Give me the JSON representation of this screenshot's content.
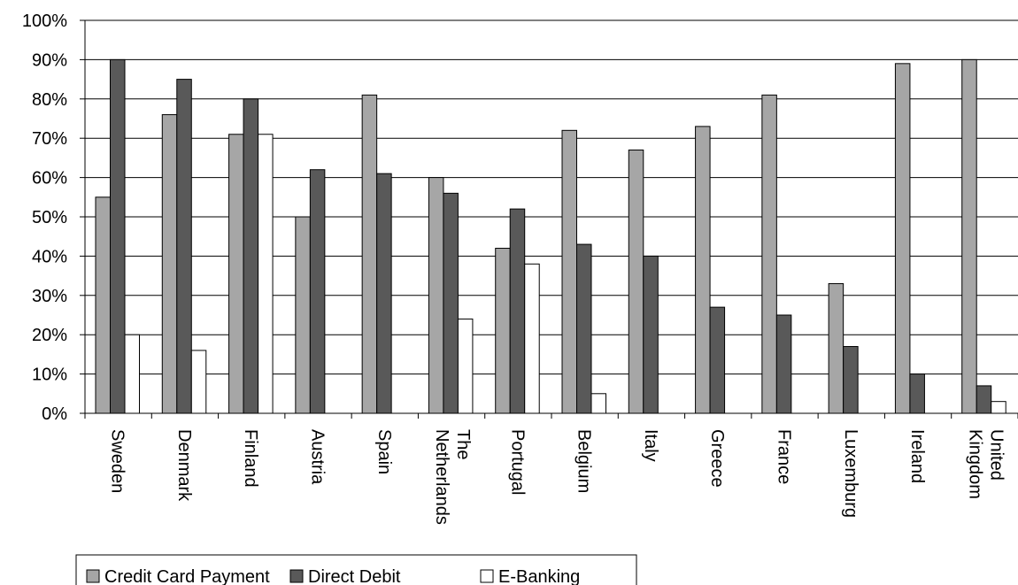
{
  "chart_data": {
    "type": "bar",
    "categories": [
      [
        "Sweden"
      ],
      [
        "Denmark"
      ],
      [
        "Finland"
      ],
      [
        "Austria"
      ],
      [
        "Spain"
      ],
      [
        "The",
        "Netherlands"
      ],
      [
        "Portugal"
      ],
      [
        "Belgium"
      ],
      [
        "Italy"
      ],
      [
        "Greece"
      ],
      [
        "France"
      ],
      [
        "Luxemburg"
      ],
      [
        "Ireland"
      ],
      [
        "United",
        "Kingdom"
      ]
    ],
    "series": [
      {
        "name": "Credit Card Payment",
        "color": "#a6a6a6",
        "values": [
          55,
          76,
          71,
          50,
          81,
          60,
          42,
          72,
          67,
          73,
          81,
          33,
          89,
          90
        ]
      },
      {
        "name": "Direct Debit",
        "color": "#595959",
        "values": [
          90,
          85,
          80,
          62,
          61,
          56,
          52,
          43,
          40,
          27,
          25,
          17,
          10,
          7
        ]
      },
      {
        "name": "E-Banking",
        "color": "#ffffff",
        "values": [
          20,
          16,
          71,
          0,
          0,
          24,
          38,
          5,
          0,
          0,
          0,
          0,
          0,
          3
        ]
      }
    ],
    "yticks": [
      "0%",
      "10%",
      "20%",
      "30%",
      "40%",
      "50%",
      "60%",
      "70%",
      "80%",
      "90%",
      "100%"
    ],
    "ylim": [
      0,
      100
    ],
    "grid": true,
    "legend_position": "bottom-left"
  }
}
